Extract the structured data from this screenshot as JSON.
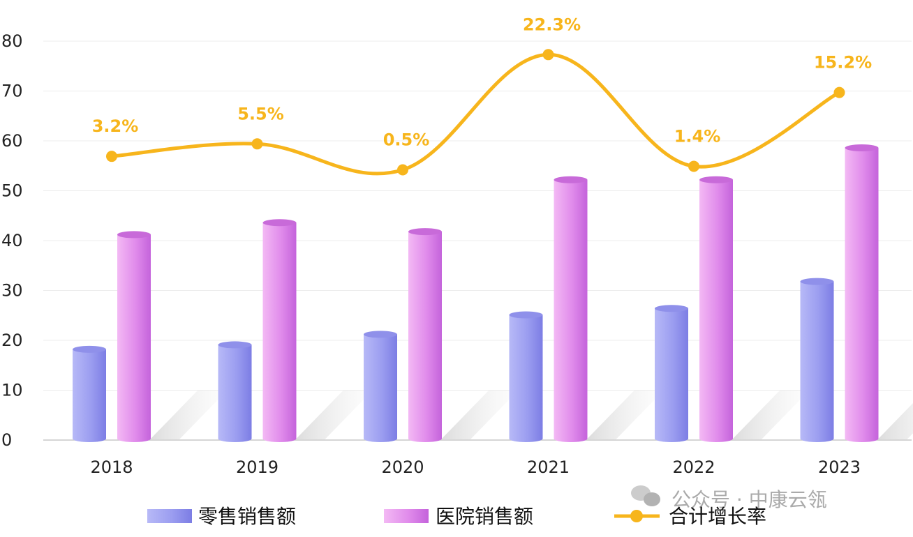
{
  "chart_data": {
    "type": "bar",
    "categories": [
      "2018",
      "2019",
      "2020",
      "2021",
      "2022",
      "2023"
    ],
    "series": [
      {
        "name": "零售销售额",
        "type": "bar",
        "values": [
          18.2,
          19.1,
          21.2,
          25.1,
          26.4,
          31.8
        ]
      },
      {
        "name": "医院销售额",
        "type": "bar",
        "values": [
          41.2,
          43.6,
          41.8,
          52.2,
          52.2,
          58.6
        ]
      },
      {
        "name": "合计增长率",
        "type": "line",
        "values": [
          56.9,
          59.4,
          54.2,
          77.3,
          54.9,
          69.7
        ],
        "labels": [
          "3.2%",
          "5.5%",
          "0.5%",
          "22.3%",
          "1.4%",
          "15.2%"
        ]
      }
    ],
    "yticks": [
      "0",
      "10",
      "20",
      "30",
      "40",
      "50",
      "60",
      "70",
      "80"
    ],
    "ylim": [
      0,
      80
    ],
    "grid": true,
    "legend_position": "bottom",
    "colors": {
      "retail_light": "#b4b6f6",
      "retail_dark": "#7f80e6",
      "hospital_light": "#f1b3f3",
      "hospital_dark": "#c565dc",
      "line": "#f7b51c"
    }
  },
  "watermark": "公众号 · 中康云瓴"
}
